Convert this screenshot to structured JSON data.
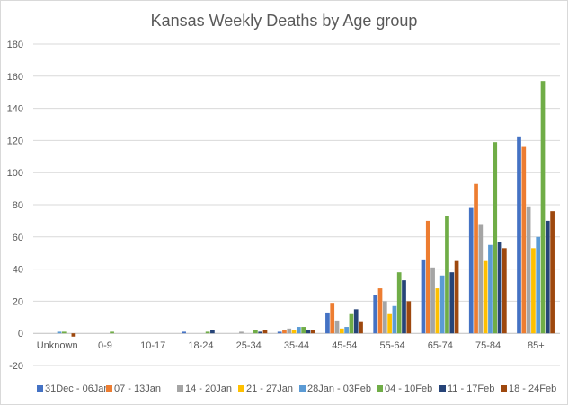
{
  "chart_data": {
    "type": "bar",
    "title": "Kansas Weekly Deaths by Age group",
    "xlabel": "",
    "ylabel": "",
    "ylim": [
      -20,
      180
    ],
    "yticks": [
      -20,
      0,
      20,
      40,
      60,
      80,
      100,
      120,
      140,
      160,
      180
    ],
    "grid": true,
    "legend_position": "bottom",
    "categories": [
      "Unknown",
      "0-9",
      "10-17",
      "18-24",
      "25-34",
      "35-44",
      "45-54",
      "55-64",
      "65-74",
      "75-84",
      "85+"
    ],
    "series": [
      {
        "name": "31Dec - 06Jan",
        "color": "#4472c4",
        "values": [
          0,
          0,
          0,
          1,
          0,
          1,
          13,
          24,
          46,
          78,
          122
        ]
      },
      {
        "name": "07 - 13Jan",
        "color": "#ed7d31",
        "values": [
          0,
          0,
          0,
          0,
          0,
          2,
          19,
          28,
          70,
          93,
          116
        ]
      },
      {
        "name": "14 - 20Jan",
        "color": "#a5a5a5",
        "values": [
          0,
          0,
          0,
          0,
          1,
          3,
          8,
          20,
          41,
          68,
          79
        ]
      },
      {
        "name": "21 - 27Jan",
        "color": "#ffc000",
        "values": [
          0,
          0,
          0,
          0,
          0,
          2,
          3,
          12,
          28,
          45,
          53
        ]
      },
      {
        "name": "28Jan - 03Feb",
        "color": "#5b9bd5",
        "values": [
          1,
          0,
          0,
          0,
          0,
          4,
          4,
          17,
          36,
          55,
          60
        ]
      },
      {
        "name": "04 - 10Feb",
        "color": "#70ad47",
        "values": [
          1,
          1,
          0,
          1,
          2,
          4,
          12,
          38,
          73,
          119,
          157
        ]
      },
      {
        "name": "11 - 17Feb",
        "color": "#264478",
        "values": [
          0,
          0,
          0,
          2,
          1,
          2,
          15,
          33,
          38,
          57,
          70
        ]
      },
      {
        "name": "18 - 24Feb",
        "color": "#9e480e",
        "values": [
          -2,
          0,
          0,
          0,
          2,
          2,
          7,
          20,
          45,
          53,
          76
        ]
      }
    ]
  }
}
